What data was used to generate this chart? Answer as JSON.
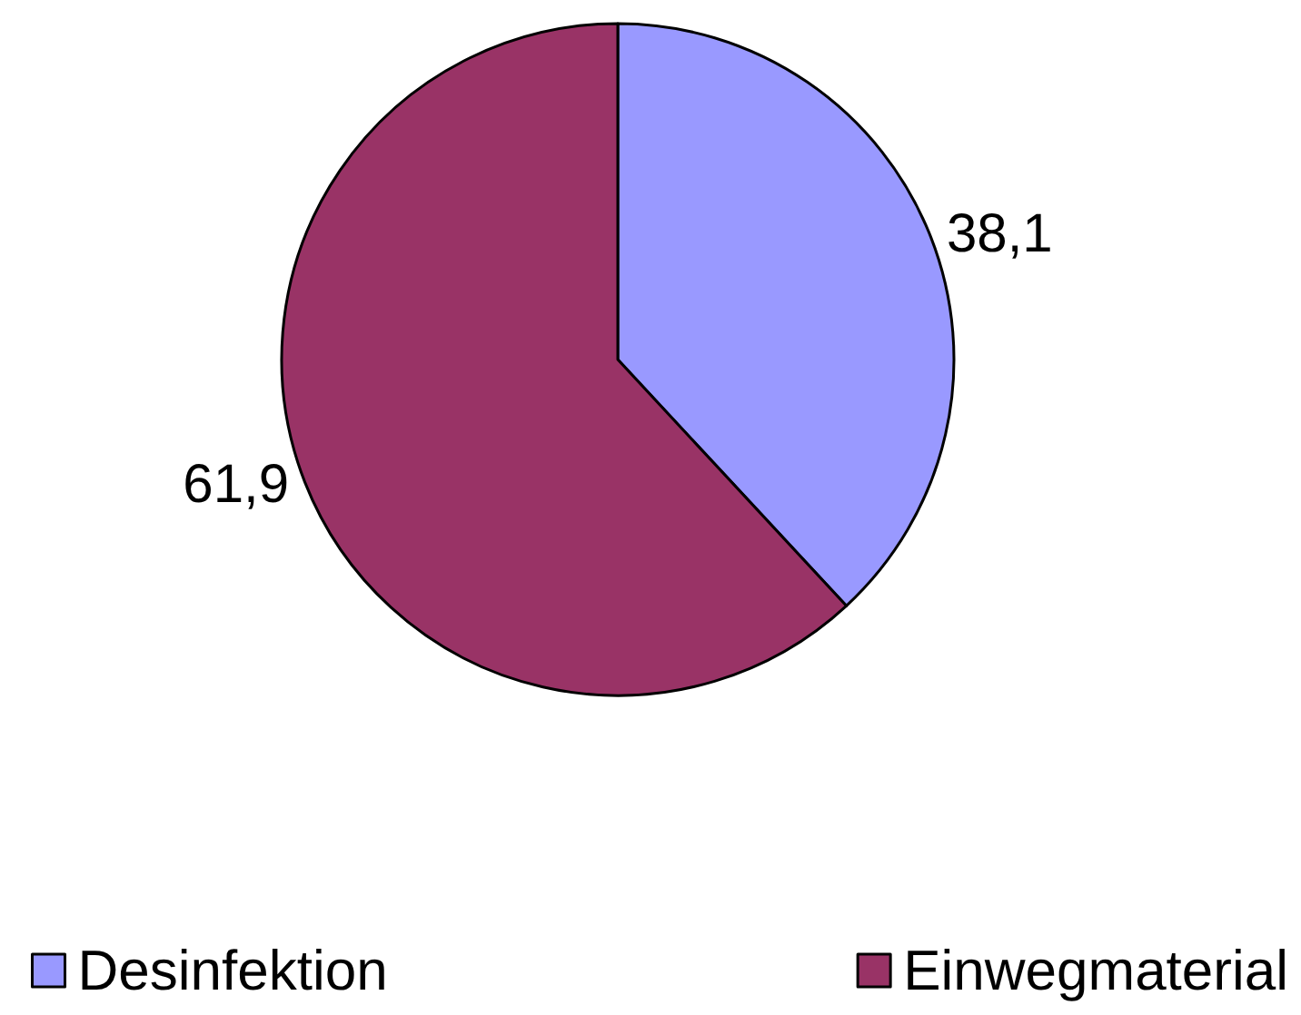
{
  "chart_data": {
    "type": "pie",
    "categories": [
      "Desinfektion",
      "Einwegmaterial"
    ],
    "values": [
      38.1,
      61.9
    ],
    "colors": [
      "#9999ff",
      "#993366"
    ],
    "value_labels": [
      "38,1",
      "61,9"
    ],
    "legend": "bottom"
  }
}
